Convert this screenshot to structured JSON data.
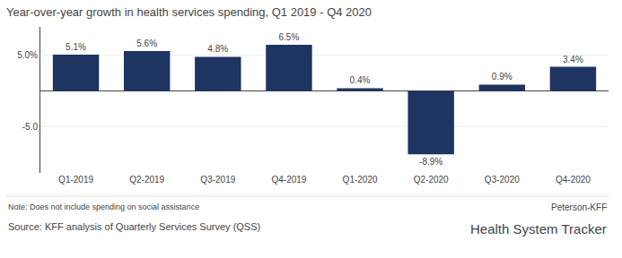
{
  "chart_data": {
    "type": "bar",
    "title": "Year-over-year growth in health services spending, Q1 2019 - Q4 2020",
    "categories": [
      "Q1-2019",
      "Q2-2019",
      "Q3-2019",
      "Q4-2019",
      "Q1-2020",
      "Q2-2020",
      "Q3-2020",
      "Q4-2020"
    ],
    "values": [
      5.1,
      5.6,
      4.8,
      6.5,
      0.4,
      -8.9,
      0.9,
      3.4
    ],
    "value_labels": [
      "5.1%",
      "5.6%",
      "4.8%",
      "6.5%",
      "0.4%",
      "-8.9%",
      "0.9%",
      "3.4%"
    ],
    "data_labels": true,
    "color": "#1e3461",
    "ylim": [
      -11.5,
      9.0
    ],
    "yticks": [
      {
        "value": -5.0,
        "label": "-5.0"
      },
      {
        "value": 5.0,
        "label": "5.0%"
      }
    ],
    "grid": true,
    "annotations": [
      "Note: Does not include spending on social assistance",
      "Source: KFF analysis of Quarterly Services Survey (QSS)",
      "Peterson-KFF",
      "Health System Tracker"
    ]
  }
}
